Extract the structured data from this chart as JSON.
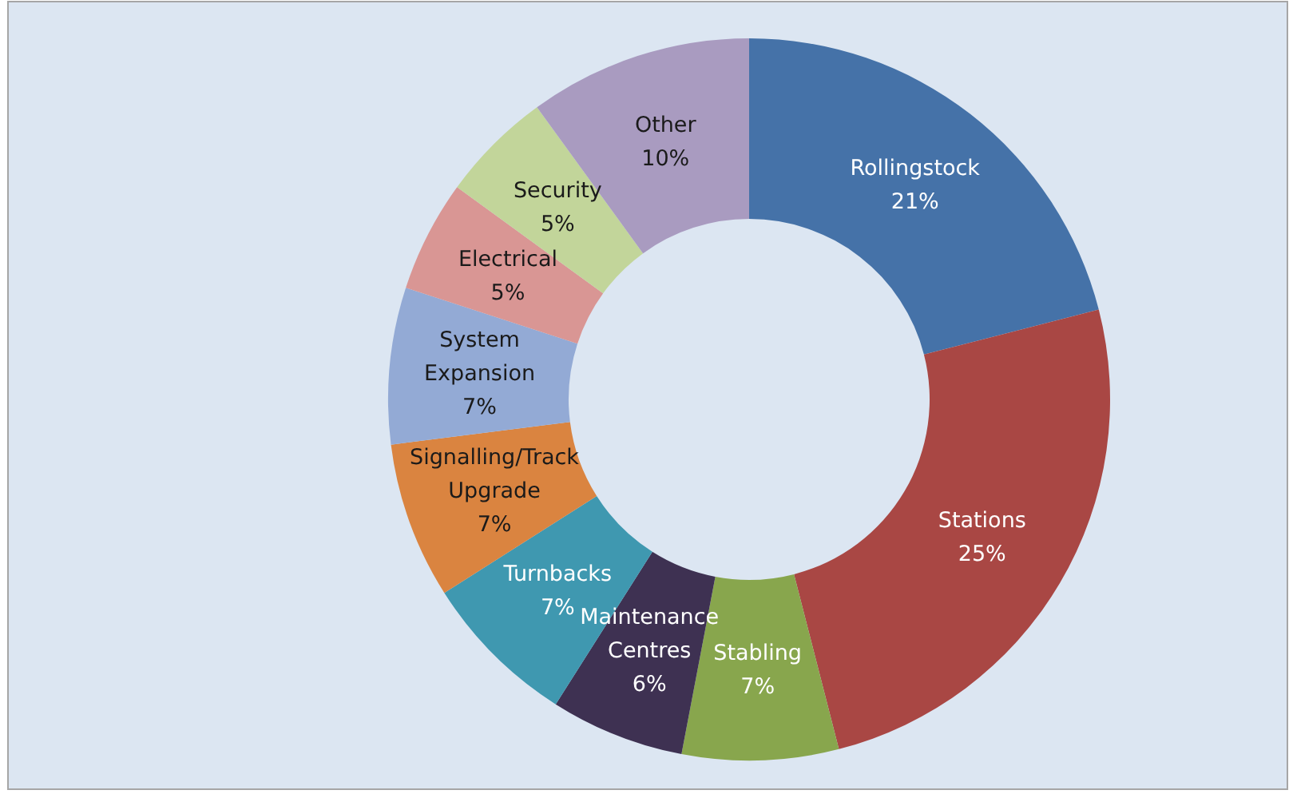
{
  "chart_data": {
    "type": "donut",
    "categories": [
      "Rollingstock",
      "Stations",
      "Stabling",
      "Maintenance Centres",
      "Turnbacks",
      "Signalling/Track Upgrade",
      "System Expansion",
      "Electrical",
      "Security",
      "Other"
    ],
    "values": [
      21,
      25,
      7,
      6,
      7,
      7,
      7,
      5,
      5,
      10
    ],
    "value_labels": [
      "21%",
      "25%",
      "7%",
      "6%",
      "7%",
      "7%",
      "7%",
      "5%",
      "5%",
      "10%"
    ],
    "colors": [
      "#4572a8",
      "#a94744",
      "#88a64d",
      "#3e3152",
      "#3f98b0",
      "#da8440",
      "#93aad5",
      "#d99694",
      "#c2d59a",
      "#a99bc0"
    ]
  }
}
